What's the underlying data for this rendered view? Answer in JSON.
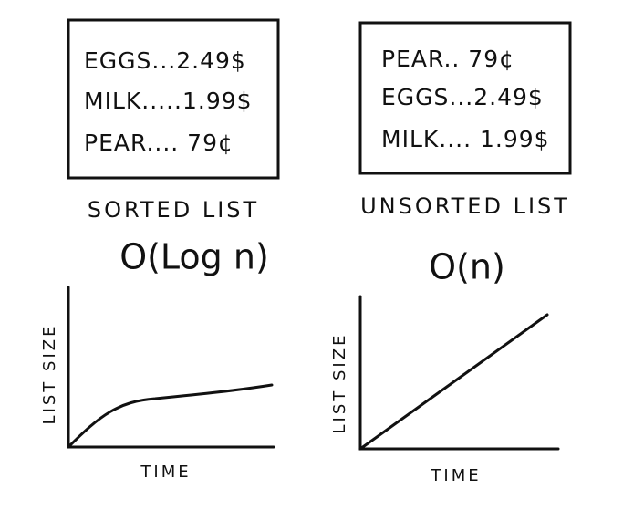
{
  "panels": [
    {
      "items": [
        "EGGS...2.49$",
        "MILK.....1.99$",
        "PEAR.... 79¢"
      ],
      "label": "SORTED LIST",
      "complexity": "O(Log n)",
      "y_axis": "LIST SIZE",
      "x_axis": "TIME"
    },
    {
      "items": [
        "PEAR.. 79¢",
        "EGGS...2.49$",
        "MILK.... 1.99$"
      ],
      "label": "UNSORTED LIST",
      "complexity": "O(n)",
      "y_axis": "LIST SIZE",
      "x_axis": "TIME"
    }
  ]
}
